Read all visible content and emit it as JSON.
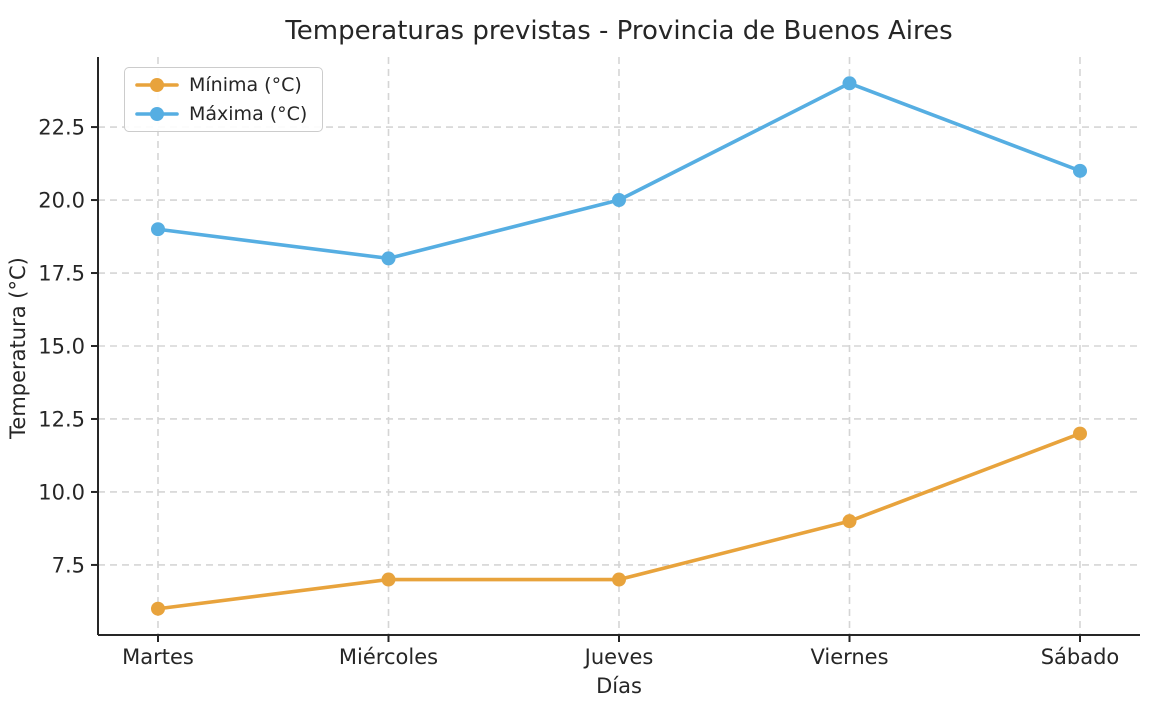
{
  "chart_data": {
    "type": "line",
    "title": "Temperaturas previstas - Provincia de Buenos Aires",
    "xlabel": "Días",
    "ylabel": "Temperatura (°C)",
    "categories": [
      "Martes",
      "Miércoles",
      "Jueves",
      "Viernes",
      "Sábado"
    ],
    "series": [
      {
        "name": "Mínima (°C)",
        "color": "#E8A33C",
        "values": [
          6,
          7,
          7,
          9,
          12
        ]
      },
      {
        "name": "Máxima (°C)",
        "color": "#56AEE2",
        "values": [
          19,
          18,
          20,
          24,
          21
        ]
      }
    ],
    "ylim": [
      5.1,
      24.9
    ],
    "yticks": [
      7.5,
      10.0,
      12.5,
      15.0,
      17.5,
      20.0,
      22.5
    ],
    "ytick_labels": [
      "7.5",
      "10.0",
      "12.5",
      "15.0",
      "17.5",
      "20.0",
      "22.5"
    ],
    "grid": true,
    "grid_style": "dashed",
    "legend_position": "upper left"
  },
  "colors": {
    "text": "#262626",
    "axis": "#262626",
    "grid": "#d5d5d5",
    "legend_border": "#cccccc",
    "background": "#ffffff"
  }
}
